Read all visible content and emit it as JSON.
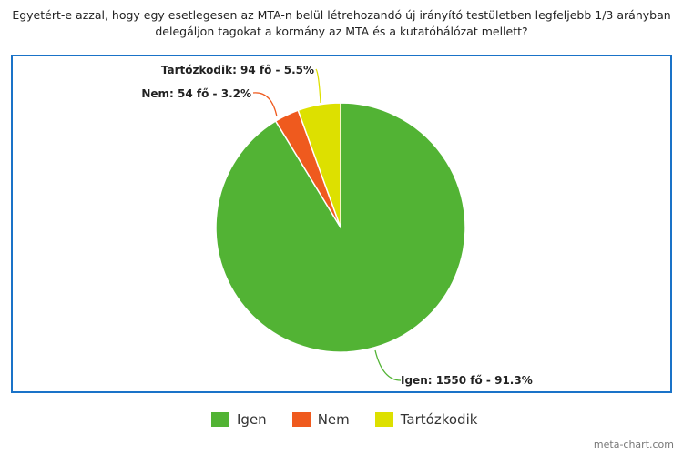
{
  "chart_data": {
    "type": "pie",
    "title": "Egyetért-e azzal, hogy egy esetlegesen az MTA-n belül létrehozandó új irányító testületben legfeljebb 1/3 arányban delegáljon tagokat a kormány az MTA és a kutatóhálózat mellett?",
    "title_lines": [
      "Egyetért-e azzal, hogy egy esetlegesen az MTA-n belül létrehozandó új irányító testületben legfeljebb 1/3 arányban",
      "delegáljon tagokat a kormány az MTA és a kutatóhálózat mellett?"
    ],
    "slices": [
      {
        "name": "Igen",
        "value": 1550,
        "percent": 91.3,
        "color": "#52b334",
        "label": "Igen: 1550 fő - 91.3%"
      },
      {
        "name": "Nem",
        "value": 54,
        "percent": 3.2,
        "color": "#ef5a1e",
        "label": "Nem: 54 fő - 3.2%"
      },
      {
        "name": "Tartózkodik",
        "value": 94,
        "percent": 5.5,
        "color": "#dde000",
        "label": "Tartózkodik: 94 fő - 5.5%"
      }
    ],
    "legend_placement": "bottom"
  },
  "credit": "meta-chart.com",
  "frame_color": "#1a73c8"
}
